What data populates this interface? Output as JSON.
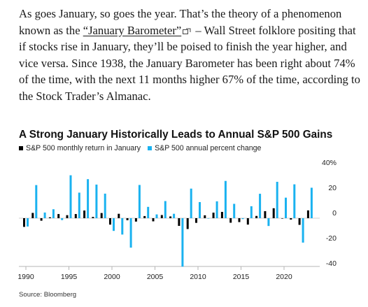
{
  "article": {
    "text_before_link": "As goes January, so goes the year. That’s the theory of a phenomenon known as the ",
    "link_text": "“January Barometer”",
    "text_after_link": " – Wall Street folklore positing that if stocks rise in January, they’ll be poised to finish the year higher, and vice versa. Since 1938, the January Barometer has been right about 74% of the time, with the next 11 months higher 67% of the time, according to the Stock Trader’s Almanac.",
    "link_icon": "external-link-icon"
  },
  "colors": {
    "monthly": "#000000",
    "annual": "#1ab2f0",
    "text": "#1a1a1a"
  },
  "chart_data": {
    "type": "bar",
    "title": "A Strong January Historically Leads to Annual S&P 500 Gains",
    "x_tick_labels": [
      "1990",
      "1995",
      "2000",
      "2005",
      "2010",
      "2015",
      "2020"
    ],
    "y_tick_labels": [
      "40%",
      "20",
      "0",
      "-20",
      "-40"
    ],
    "ylim": [
      -40,
      40
    ],
    "xlim": [
      1990,
      2023
    ],
    "grid": false,
    "legend_position": "top-left",
    "series": [
      {
        "name": "S&P 500 monthly return in January",
        "color": "#000000",
        "x": [
          1990,
          1991,
          1992,
          1993,
          1994,
          1995,
          1996,
          1997,
          1998,
          1999,
          2000,
          2001,
          2002,
          2003,
          2004,
          2005,
          2006,
          2007,
          2008,
          2009,
          2010,
          2011,
          2012,
          2013,
          2014,
          2015,
          2016,
          2017,
          2018,
          2019,
          2020,
          2021,
          2022,
          2023
        ],
        "values": [
          -6.9,
          4.2,
          -2.0,
          0.7,
          3.3,
          2.4,
          3.3,
          6.1,
          1.0,
          4.1,
          -5.1,
          3.5,
          -1.6,
          -2.7,
          1.7,
          -2.5,
          2.5,
          1.4,
          -6.1,
          -8.6,
          -3.7,
          2.3,
          4.4,
          5.0,
          -3.6,
          -3.1,
          -5.1,
          1.8,
          5.6,
          7.9,
          -0.2,
          -1.1,
          -5.3,
          6.2
        ]
      },
      {
        "name": "S&P 500 annual percent change",
        "color": "#1ab2f0",
        "x": [
          1990,
          1991,
          1992,
          1993,
          1994,
          1995,
          1996,
          1997,
          1998,
          1999,
          2000,
          2001,
          2002,
          2003,
          2004,
          2005,
          2006,
          2007,
          2008,
          2009,
          2010,
          2011,
          2012,
          2013,
          2014,
          2015,
          2016,
          2017,
          2018,
          2019,
          2020,
          2021,
          2022,
          2023
        ],
        "values": [
          -6.6,
          26.3,
          4.5,
          7.1,
          -1.5,
          34.1,
          20.3,
          31.0,
          26.7,
          19.5,
          -10.1,
          -13.0,
          -23.4,
          26.4,
          9.0,
          3.0,
          13.6,
          3.5,
          -38.5,
          23.5,
          12.8,
          0.0,
          13.4,
          29.6,
          11.4,
          -0.7,
          9.5,
          19.4,
          -6.2,
          28.9,
          16.3,
          26.9,
          -19.4,
          24.2
        ]
      }
    ]
  },
  "source": "Source: Bloomberg"
}
